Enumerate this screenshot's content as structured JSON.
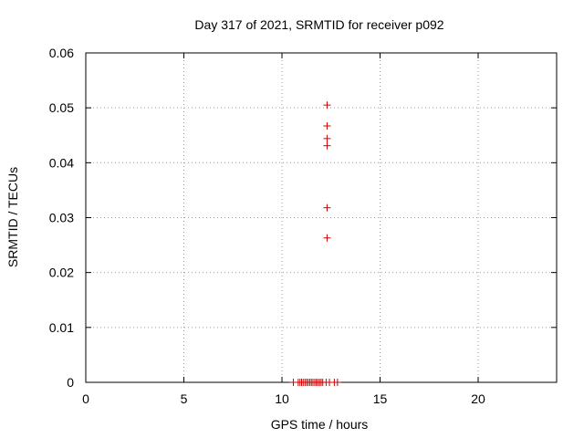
{
  "chart_data": {
    "type": "scatter",
    "title": "Day 317 of 2021, SRMTID for receiver p092",
    "xlabel": "GPS time / hours",
    "ylabel": "SRMTID / TECUs",
    "xlim": [
      0,
      24
    ],
    "ylim": [
      0,
      0.06
    ],
    "xticks": [
      0,
      5,
      10,
      15,
      20
    ],
    "xtick_labels": [
      "0",
      "5",
      "10",
      "15",
      "20"
    ],
    "yticks": [
      0,
      0.01,
      0.02,
      0.03,
      0.04,
      0.05,
      0.06
    ],
    "ytick_labels": [
      "0",
      "0.01",
      "0.02",
      "0.03",
      "0.04",
      "0.05",
      "0.06"
    ],
    "grid": true,
    "marker": "+",
    "color": "#cc0000",
    "series": [
      {
        "x": [
          12.3,
          12.3,
          12.3,
          12.3,
          12.3,
          12.3,
          10.58,
          10.83,
          10.92,
          11.0,
          11.08,
          11.17,
          11.25,
          11.33,
          11.42,
          11.5,
          11.58,
          11.67,
          11.75,
          11.83,
          11.92,
          12.0,
          12.08,
          12.25,
          12.42,
          12.67,
          12.83
        ],
        "y": [
          0.0505,
          0.0467,
          0.0444,
          0.0431,
          0.0318,
          0.0263,
          0,
          0,
          0,
          0,
          0,
          0,
          0,
          0,
          0,
          0,
          0,
          0,
          0,
          0,
          0,
          0,
          0,
          0,
          0,
          0,
          0
        ]
      }
    ]
  }
}
